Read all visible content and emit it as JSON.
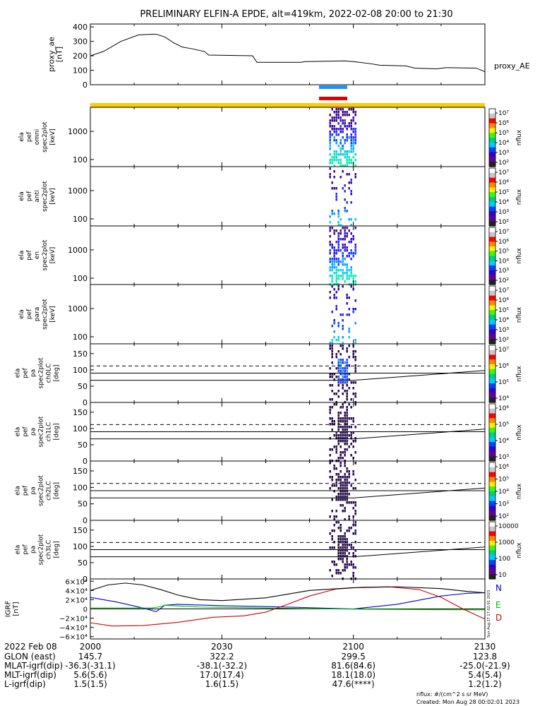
{
  "title": "PRELIMINARY ELFIN-A EPDE, alt=419km, 2022-02-08 20:00 to 21:30",
  "chart_data": [
    {
      "type": "line",
      "panel": "proxy_ae",
      "ylabel_lines": [
        "proxy_ae",
        "[nT]"
      ],
      "series_label": "proxy_AE",
      "yticks": [
        "400",
        "300",
        "200",
        "100",
        "0"
      ],
      "ylim": [
        0,
        420
      ],
      "xlim_min": [
        0,
        90
      ],
      "x": [
        0,
        3,
        7,
        11,
        15,
        17,
        19,
        21,
        23,
        26,
        27,
        37,
        38,
        48,
        49,
        58,
        60,
        64,
        66,
        72,
        74,
        79,
        81,
        88,
        90
      ],
      "y": [
        200,
        230,
        300,
        345,
        350,
        330,
        290,
        260,
        250,
        230,
        205,
        200,
        155,
        155,
        160,
        165,
        160,
        145,
        135,
        130,
        115,
        110,
        118,
        115,
        90
      ]
    },
    {
      "type": "heatmap",
      "panel": "spectrogram",
      "titles": [
        [
          "ela",
          "pef",
          "omni",
          "spec2plot",
          "[keV]"
        ],
        [
          "ela",
          "pef",
          "anti",
          "spec2plot",
          "[keV]"
        ],
        [
          "ela",
          "pef",
          "en",
          "spec2plot",
          "[keV]"
        ],
        [
          "ela",
          "pef",
          "para",
          "spec2plot",
          "[keV]"
        ]
      ],
      "yticks": [
        "1000",
        "100"
      ],
      "colorbar_label": "nflux",
      "colorbar_ticks": [
        "10⁷",
        "10⁶",
        "10⁵",
        "10⁴",
        "10³",
        "10²"
      ],
      "active_interval_min": [
        54.5,
        60.5
      ]
    },
    {
      "type": "heatmap",
      "panel": "pitch-angle",
      "titles": [
        [
          "ela",
          "pef",
          "pa",
          "spec2plot",
          "ch0LC",
          "[deg]"
        ],
        [
          "ela",
          "pef",
          "pa",
          "spec2plot",
          "ch1LC",
          "[deg]"
        ],
        [
          "ela",
          "pef",
          "pa",
          "spec2plot",
          "ch2LC",
          "[deg]"
        ],
        [
          "ela",
          "pef",
          "pa",
          "spec2plot",
          "ch3LC",
          "[deg]"
        ]
      ],
      "yticks": [
        "150",
        "100",
        "50",
        "0"
      ],
      "ylim": [
        0,
        180
      ],
      "colorbar_label": "nflux",
      "colorbar_ticks": [
        [
          "10⁷",
          "10⁶",
          "10⁵",
          "10⁴"
        ],
        [
          "10⁶",
          "10⁵",
          "10⁴",
          "10³"
        ],
        [
          "10⁶",
          "10⁵",
          "10⁴",
          "10³",
          "10²"
        ],
        [
          "10000",
          "1000",
          "100",
          "10"
        ]
      ]
    },
    {
      "type": "line",
      "panel": "igrf",
      "ylabel_lines": [
        "IGRF",
        "[nT]"
      ],
      "yticks": [
        "6×10⁴",
        "4×10⁴",
        "2×10⁴",
        "0",
        "−2×10⁴",
        "−4×10⁴",
        "−6×10⁴"
      ],
      "ylim": [
        -65000,
        65000
      ],
      "series": [
        {
          "name": "N",
          "color": "#0000cc",
          "x": [
            0,
            6,
            12,
            15,
            17,
            20,
            30,
            45,
            60,
            70,
            80,
            86,
            90
          ],
          "y": [
            25000,
            15000,
            2000,
            -6000,
            8000,
            10000,
            7000,
            4000,
            0,
            10000,
            28000,
            34000,
            35000
          ]
        },
        {
          "name": "E",
          "color": "#00bb00",
          "x": [
            0,
            14,
            16,
            17,
            25,
            40,
            60,
            75,
            90
          ],
          "y": [
            2000,
            2000,
            5000,
            8000,
            4000,
            2000,
            -500,
            -1500,
            -2000
          ]
        },
        {
          "name": "D",
          "color": "#cc0000",
          "x": [
            0,
            5,
            12,
            20,
            28,
            35,
            40,
            45,
            50,
            56,
            62,
            68,
            75,
            80,
            85,
            90
          ],
          "y": [
            -30000,
            -37000,
            -36000,
            -29000,
            -18000,
            -15000,
            -7000,
            10000,
            28000,
            43000,
            47000,
            48000,
            42000,
            25000,
            0,
            -22000
          ]
        },
        {
          "name": "",
          "color": "#000000",
          "x": [
            0,
            4,
            8,
            12,
            16,
            20,
            25,
            30,
            40,
            50,
            60,
            70,
            80,
            86,
            90
          ],
          "y": [
            40000,
            52000,
            56000,
            52000,
            42000,
            30000,
            20000,
            18000,
            24000,
            40000,
            46000,
            48000,
            44000,
            38000,
            35000
          ]
        }
      ]
    }
  ],
  "x_axis": {
    "date": "2022 Feb 08",
    "ticks": [
      "2000",
      "2030",
      "2100",
      "2130"
    ],
    "ephemeris": [
      {
        "label": "GLON (east)",
        "values": [
          "145.7",
          "322.2",
          "299.5",
          "123.8"
        ]
      },
      {
        "label": "MLAT-igrf(dip)",
        "values": [
          "-36.3(-31.1)",
          "-38.1(-32.2)",
          "81.6(84.6)",
          "-25.0(-21.9)"
        ]
      },
      {
        "label": "MLT-igrf(dip)",
        "values": [
          "5.6(5.6)",
          "17.0(17.4)",
          "18.1(18.0)",
          "5.4(5.4)"
        ]
      },
      {
        "label": "L-igrf(dip)",
        "values": [
          "1.5(1.5)",
          "1.6(1.5)",
          "47.6(****)",
          "1.2(1.2)"
        ]
      }
    ]
  },
  "footer": {
    "units": "nflux: #/(cm^2 s sr MeV)",
    "created": "Created: Mon Aug 28 00:02:01 2023",
    "side_stamp": "Sun Aug 27 17:02:01 2023"
  },
  "colors": {
    "fgs_bar": "#ffcc00",
    "science_blue": "#1e90ff",
    "science_red": "#dd0000"
  }
}
